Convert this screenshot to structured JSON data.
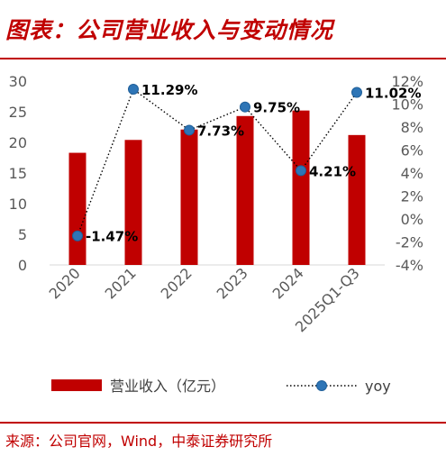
{
  "header": {
    "title": "图表：公司营业收入与变动情况"
  },
  "footer": {
    "source": "来源：公司官网，Wind，中泰证券研究所"
  },
  "colors": {
    "bar": "#c00000",
    "line_marker": "#2e75b6",
    "title": "#c00000"
  },
  "chart_data": {
    "type": "bar",
    "categories": [
      "2020",
      "2021",
      "2022",
      "2023",
      "2024",
      "2025Q1-Q3"
    ],
    "series": [
      {
        "name": "营业收入（亿元）",
        "type": "bar",
        "axis": "left",
        "values": [
          18.3,
          20.4,
          22.1,
          24.3,
          25.2,
          21.2
        ]
      },
      {
        "name": "yoy",
        "type": "line",
        "axis": "right",
        "line_style": "dotted",
        "values": [
          -1.47,
          11.29,
          7.73,
          9.75,
          4.21,
          11.02
        ],
        "labels": [
          "-1.47%",
          "11.29%",
          "7.73%",
          "9.75%",
          "4.21%",
          "11.02%"
        ]
      }
    ],
    "left_axis": {
      "min": 0,
      "max": 30,
      "ticks": [
        "0",
        "5",
        "10",
        "15",
        "20",
        "25",
        "30"
      ]
    },
    "right_axis": {
      "min": -4,
      "max": 12,
      "ticks": [
        "-4%",
        "-2%",
        "0%",
        "2%",
        "4%",
        "6%",
        "8%",
        "10%",
        "12%"
      ]
    },
    "grid": false,
    "legend_position": "bottom"
  }
}
